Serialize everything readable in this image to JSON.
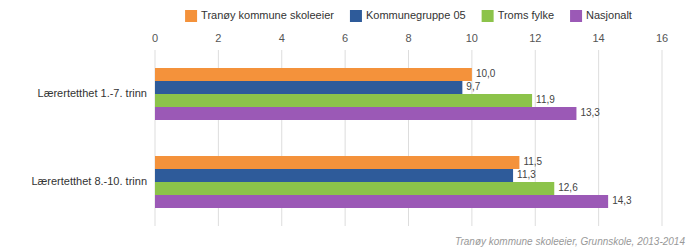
{
  "chart_data": {
    "type": "bar",
    "orientation": "horizontal",
    "categories": [
      "Lærertetthet 1.-7. trinn",
      "Lærertetthet 8.-10. trinn"
    ],
    "series": [
      {
        "name": "Tranøy kommune skoleeier",
        "color": "#f4923b",
        "values": [
          10.0,
          11.5
        ],
        "value_labels": [
          "10,0",
          "11,5"
        ]
      },
      {
        "name": "Kommunegruppe 05",
        "color": "#2e5b9a",
        "values": [
          9.7,
          11.3
        ],
        "value_labels": [
          "9,7",
          "11,3"
        ]
      },
      {
        "name": "Troms fylke",
        "color": "#8cc34a",
        "values": [
          11.9,
          12.6
        ],
        "value_labels": [
          "11,9",
          "12,6"
        ]
      },
      {
        "name": "Nasjonalt",
        "color": "#9b59b6",
        "values": [
          13.3,
          14.3
        ],
        "value_labels": [
          "13,3",
          "14,3"
        ]
      }
    ],
    "xlim": [
      0,
      16
    ],
    "xticks": [
      0,
      2,
      4,
      6,
      8,
      10,
      12,
      14,
      16
    ],
    "grid": true,
    "legend": "top",
    "data_labels": true,
    "annotations": [
      "Tranøy kommune skoleeier, Grunnskole, 2013-2014"
    ]
  }
}
